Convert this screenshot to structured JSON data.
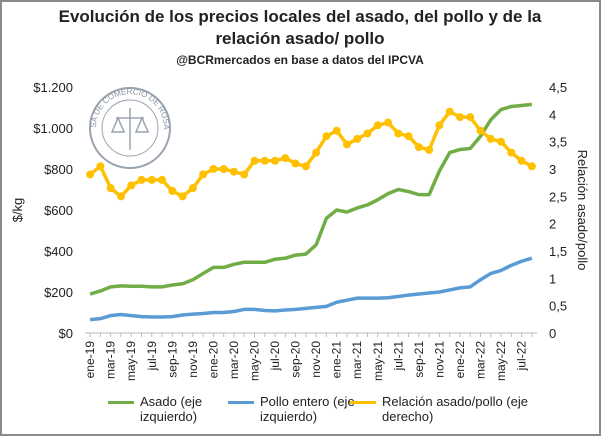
{
  "chart_data": {
    "type": "line",
    "title": "Evolución de los precios locales del asado, del pollo y de la relación asado/ pollo",
    "subtitle": "@BCRmercados en base a datos del IPCVA",
    "logo_text": "BOLSA DE COMERCIO DE ROSARIO",
    "y_label": "$/kg",
    "y2_label": "Relación asado/pollo",
    "categories": [
      "ene-19",
      null,
      "mar-19",
      null,
      "may-19",
      null,
      "jul-19",
      null,
      "sep-19",
      null,
      "nov-19",
      null,
      "ene-20",
      null,
      "mar-20",
      null,
      "may-20",
      null,
      "jul-20",
      null,
      "sep-20",
      null,
      "nov-20",
      null,
      "ene-21",
      null,
      "mar-21",
      null,
      "may-21",
      null,
      "jul-21",
      null,
      "sep-21",
      null,
      "nov-21",
      null,
      "ene-22",
      null,
      "mar-22",
      null,
      "may-22",
      null,
      "jul-22",
      null
    ],
    "ylim": [
      0,
      1200
    ],
    "yticks": [
      {
        "value": 0,
        "label": "$0"
      },
      {
        "value": 200,
        "label": "$200"
      },
      {
        "value": 400,
        "label": "$400"
      },
      {
        "value": 600,
        "label": "$600"
      },
      {
        "value": 800,
        "label": "$800"
      },
      {
        "value": 1000,
        "label": "$1.000"
      },
      {
        "value": 1200,
        "label": "$1.200"
      }
    ],
    "y2lim": [
      0,
      4.5
    ],
    "y2ticks": [
      0,
      {
        "value": 0.5,
        "label": "0,5"
      },
      1,
      {
        "value": 1.5,
        "label": "1,5"
      },
      2,
      {
        "value": 2.5,
        "label": "2,5"
      },
      3,
      {
        "value": 3.5,
        "label": "3,5"
      },
      4,
      {
        "value": 4.5,
        "label": "4,5"
      }
    ],
    "grid": false,
    "legend": "bottom",
    "series": [
      {
        "name": "Asado (eje izquierdo)",
        "color": "#70ad47",
        "markers": false,
        "values": [
          190,
          205,
          225,
          230,
          228,
          228,
          225,
          225,
          234,
          240,
          260,
          290,
          320,
          320,
          335,
          345,
          345,
          345,
          360,
          365,
          380,
          385,
          430,
          560,
          600,
          590,
          610,
          625,
          650,
          680,
          700,
          690,
          675,
          675,
          790,
          880,
          895,
          900,
          960,
          1040,
          1090,
          1105,
          1110,
          1115
        ]
      },
      {
        "name": "Pollo entero (eje izquierdo)",
        "color": "#5b9bd5",
        "markers": false,
        "values": [
          65,
          70,
          85,
          90,
          85,
          80,
          78,
          78,
          80,
          88,
          92,
          95,
          100,
          100,
          105,
          115,
          115,
          110,
          108,
          112,
          115,
          120,
          125,
          130,
          150,
          160,
          170,
          170,
          170,
          172,
          178,
          185,
          190,
          195,
          200,
          210,
          220,
          225,
          260,
          290,
          305,
          330,
          350,
          365
        ]
      },
      {
        "name": "Relación asado/pollo (eje derecho)",
        "color": "#ffc000",
        "axis": "y2",
        "markers": true,
        "values": [
          2.9,
          3.05,
          2.65,
          2.5,
          2.7,
          2.8,
          2.8,
          2.8,
          2.6,
          2.5,
          2.65,
          2.9,
          3.0,
          3.0,
          2.95,
          2.9,
          3.15,
          3.15,
          3.15,
          3.2,
          3.1,
          3.05,
          3.3,
          3.6,
          3.7,
          3.45,
          3.55,
          3.65,
          3.8,
          3.85,
          3.65,
          3.6,
          3.4,
          3.35,
          3.8,
          4.05,
          3.95,
          3.95,
          3.7,
          3.55,
          3.5,
          3.3,
          3.15,
          3.05
        ]
      }
    ]
  }
}
